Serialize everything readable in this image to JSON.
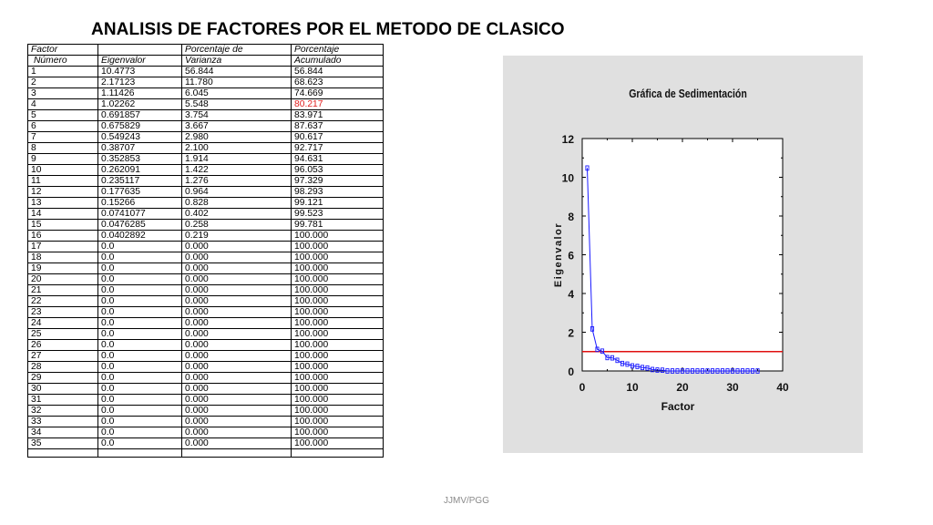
{
  "title": "ANALISIS DE FACTORES POR EL METODO DE CLASICO",
  "table": {
    "header_row1": [
      "Factor",
      "",
      "Porcentaje de",
      "Porcentaje"
    ],
    "header_row2": [
      "Número",
      "Eigenvalor",
      "Varianza",
      "Acumulado"
    ],
    "highlight_color": "#e02020",
    "rows": [
      {
        "factor": "1",
        "eigen": "10.4773",
        "var": "56.844",
        "acum": "56.844"
      },
      {
        "factor": "2",
        "eigen": "2.17123",
        "var": "11.780",
        "acum": "68.623"
      },
      {
        "factor": "3",
        "eigen": "1.11426",
        "var": "6.045",
        "acum": "74.669"
      },
      {
        "factor": "4",
        "eigen": "1.02262",
        "var": "5.548",
        "acum": "80.217",
        "highlight": true
      },
      {
        "factor": "5",
        "eigen": "0.691857",
        "var": "3.754",
        "acum": "83.971"
      },
      {
        "factor": "6",
        "eigen": "0.675829",
        "var": "3.667",
        "acum": "87.637"
      },
      {
        "factor": "7",
        "eigen": "0.549243",
        "var": "2.980",
        "acum": "90.617"
      },
      {
        "factor": "8",
        "eigen": "0.38707",
        "var": "2.100",
        "acum": "92.717"
      },
      {
        "factor": "9",
        "eigen": "0.352853",
        "var": "1.914",
        "acum": "94.631"
      },
      {
        "factor": "10",
        "eigen": "0.262091",
        "var": "1.422",
        "acum": "96.053"
      },
      {
        "factor": "11",
        "eigen": "0.235117",
        "var": "1.276",
        "acum": "97.329"
      },
      {
        "factor": "12",
        "eigen": "0.177635",
        "var": "0.964",
        "acum": "98.293"
      },
      {
        "factor": "13",
        "eigen": "0.15266",
        "var": "0.828",
        "acum": "99.121"
      },
      {
        "factor": "14",
        "eigen": "0.0741077",
        "var": "0.402",
        "acum": "99.523"
      },
      {
        "factor": "15",
        "eigen": "0.0476285",
        "var": "0.258",
        "acum": "99.781"
      },
      {
        "factor": "16",
        "eigen": "0.0402892",
        "var": "0.219",
        "acum": "100.000"
      },
      {
        "factor": "17",
        "eigen": "0.0",
        "var": "0.000",
        "acum": "100.000"
      },
      {
        "factor": "18",
        "eigen": "0.0",
        "var": "0.000",
        "acum": "100.000"
      },
      {
        "factor": "19",
        "eigen": "0.0",
        "var": "0.000",
        "acum": "100.000"
      },
      {
        "factor": "20",
        "eigen": "0.0",
        "var": "0.000",
        "acum": "100.000"
      },
      {
        "factor": "21",
        "eigen": "0.0",
        "var": "0.000",
        "acum": "100.000"
      },
      {
        "factor": "22",
        "eigen": "0.0",
        "var": "0.000",
        "acum": "100.000"
      },
      {
        "factor": "23",
        "eigen": "0.0",
        "var": "0.000",
        "acum": "100.000"
      },
      {
        "factor": "24",
        "eigen": "0.0",
        "var": "0.000",
        "acum": "100.000"
      },
      {
        "factor": "25",
        "eigen": "0.0",
        "var": "0.000",
        "acum": "100.000"
      },
      {
        "factor": "26",
        "eigen": "0.0",
        "var": "0.000",
        "acum": "100.000"
      },
      {
        "factor": "27",
        "eigen": "0.0",
        "var": "0.000",
        "acum": "100.000"
      },
      {
        "factor": "28",
        "eigen": "0.0",
        "var": "0.000",
        "acum": "100.000"
      },
      {
        "factor": "29",
        "eigen": "0.0",
        "var": "0.000",
        "acum": "100.000"
      },
      {
        "factor": "30",
        "eigen": "0.0",
        "var": "0.000",
        "acum": "100.000"
      },
      {
        "factor": "31",
        "eigen": "0.0",
        "var": "0.000",
        "acum": "100.000"
      },
      {
        "factor": "32",
        "eigen": "0.0",
        "var": "0.000",
        "acum": "100.000"
      },
      {
        "factor": "33",
        "eigen": "0.0",
        "var": "0.000",
        "acum": "100.000"
      },
      {
        "factor": "34",
        "eigen": "0.0",
        "var": "0.000",
        "acum": "100.000"
      },
      {
        "factor": "35",
        "eigen": "0.0",
        "var": "0.000",
        "acum": "100.000"
      }
    ]
  },
  "chart_data": {
    "type": "line",
    "title": "Gráfica de Sedimentación",
    "xlabel": "Factor",
    "ylabel": "Eigenvalor",
    "xlim": [
      0,
      40
    ],
    "ylim": [
      0,
      12
    ],
    "xticks": [
      0,
      10,
      20,
      30,
      40
    ],
    "yticks": [
      0,
      2,
      4,
      6,
      8,
      10,
      12
    ],
    "grid": false,
    "x": [
      1,
      2,
      3,
      4,
      5,
      6,
      7,
      8,
      9,
      10,
      11,
      12,
      13,
      14,
      15,
      16,
      17,
      18,
      19,
      20,
      21,
      22,
      23,
      24,
      25,
      26,
      27,
      28,
      29,
      30,
      31,
      32,
      33,
      34,
      35
    ],
    "series": [
      {
        "values": [
          10.4773,
          2.17123,
          1.11426,
          1.02262,
          0.691857,
          0.675829,
          0.549243,
          0.38707,
          0.352853,
          0.262091,
          0.235117,
          0.177635,
          0.15266,
          0.0741077,
          0.0476285,
          0.0402892,
          0,
          0,
          0,
          0,
          0,
          0,
          0,
          0,
          0,
          0,
          0,
          0,
          0,
          0,
          0,
          0,
          0,
          0,
          0
        ],
        "color": "#1a1aff"
      }
    ],
    "reference_line": {
      "y": 1.0,
      "color": "#e01010"
    },
    "background_color": "#e0e0e0"
  },
  "footer": "JJMV/PGG"
}
